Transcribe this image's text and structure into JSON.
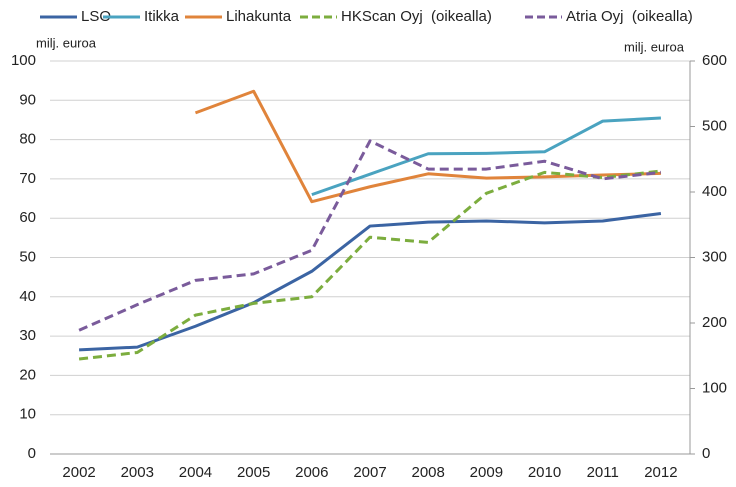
{
  "chart_data": {
    "type": "line",
    "y_label": "milj. euroa",
    "y2_label": "milj. euroa",
    "categories": [
      "2002",
      "2003",
      "2004",
      "2005",
      "2006",
      "2007",
      "2008",
      "2009",
      "2010",
      "2011",
      "2012"
    ],
    "series": [
      {
        "name": "LSO",
        "color": "#3b64a3",
        "dash": false,
        "values": [
          26.5,
          27.2,
          32.5,
          38.5,
          46.5,
          58,
          59,
          59.3,
          58.8,
          59.3,
          61.2
        ]
      },
      {
        "name": "Itikka",
        "color": "#4aa3c0",
        "dash": false,
        "values": [
          null,
          null,
          null,
          null,
          66,
          71.2,
          76.4,
          76.5,
          76.9,
          84.7,
          85.5
        ]
      },
      {
        "name": "Lihakunta",
        "color": "#e0843b",
        "dash": false,
        "values": [
          null,
          null,
          86.8,
          92.3,
          64.2,
          68,
          71.3,
          70.2,
          70.5,
          71,
          71.4
        ]
      },
      {
        "name": "HKScan Oyj  (oikealla)",
        "color": "#7cad3e",
        "dash": true,
        "axis": "y2",
        "values": [
          145,
          155,
          212,
          230,
          240,
          331,
          323,
          398,
          430,
          422,
          432
        ]
      },
      {
        "name": "Atria Oyj  (oikealla)",
        "color": "#7a5b9b",
        "dash": true,
        "axis": "y2",
        "values": [
          189,
          228,
          265,
          275,
          311,
          478,
          435,
          435,
          447,
          420,
          430
        ]
      }
    ],
    "ylim": [
      0,
      100
    ],
    "yticks": [
      0,
      10,
      20,
      30,
      40,
      50,
      60,
      70,
      80,
      90,
      100
    ],
    "y2lim": [
      0,
      600
    ],
    "y2ticks": [
      0,
      100,
      200,
      300,
      400,
      500,
      600
    ],
    "grid": true
  }
}
